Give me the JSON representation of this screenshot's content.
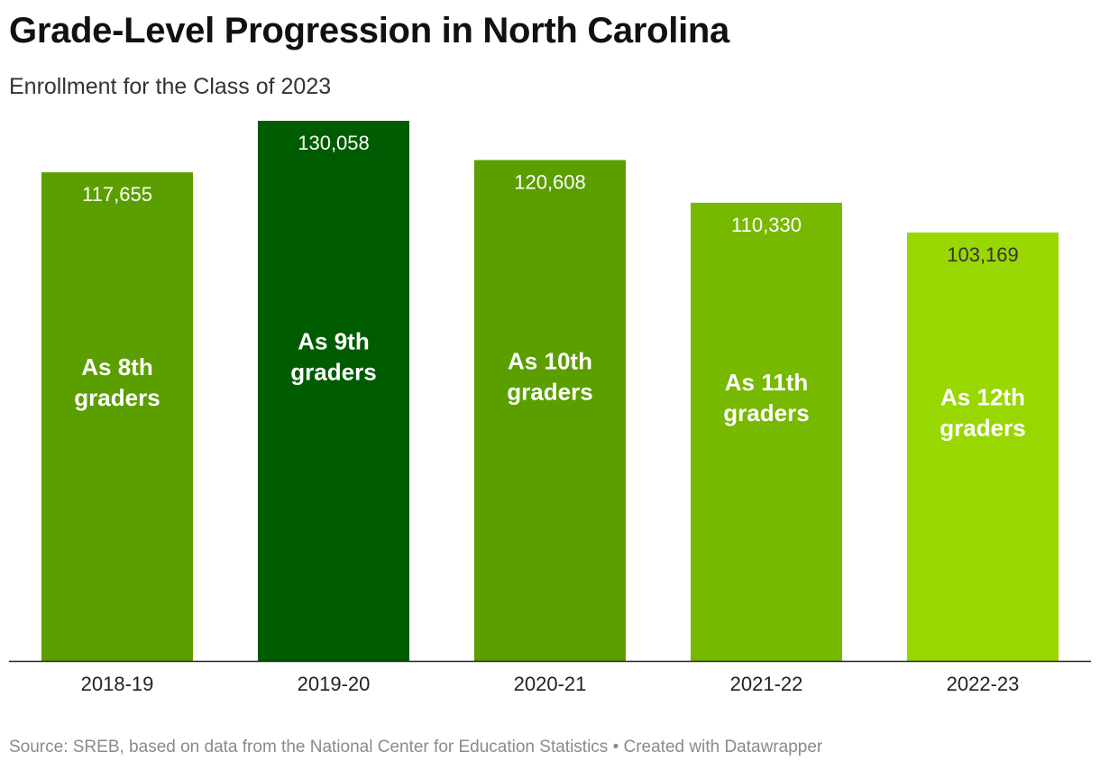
{
  "header": {
    "title": "Grade-Level Progression in North Carolina",
    "subtitle": "Enrollment for the Class of 2023"
  },
  "footer": {
    "source": "Source: SREB, based on data from the National Center for Education Statistics • Created with Datawrapper"
  },
  "chart_data": {
    "type": "bar",
    "title": "Grade-Level Progression in North Carolina",
    "subtitle": "Enrollment for the Class of 2023",
    "categories": [
      "2018-19",
      "2019-20",
      "2020-21",
      "2021-22",
      "2022-23"
    ],
    "values": [
      117655,
      130058,
      120608,
      110330,
      103169
    ],
    "value_labels": [
      "117,655",
      "130,058",
      "120,608",
      "110,330",
      "103,169"
    ],
    "bar_labels": [
      [
        "As 8th",
        "graders"
      ],
      [
        "As 9th",
        "graders"
      ],
      [
        "As 10th",
        "graders"
      ],
      [
        "As 11th",
        "graders"
      ],
      [
        "As 12th",
        "graders"
      ]
    ],
    "colors": [
      "#5a9e00",
      "#005c00",
      "#5a9e00",
      "#77b800",
      "#99d700"
    ],
    "ylim": [
      0,
      130058
    ],
    "grid": false,
    "legend": "none",
    "xlabel": "",
    "ylabel": ""
  }
}
